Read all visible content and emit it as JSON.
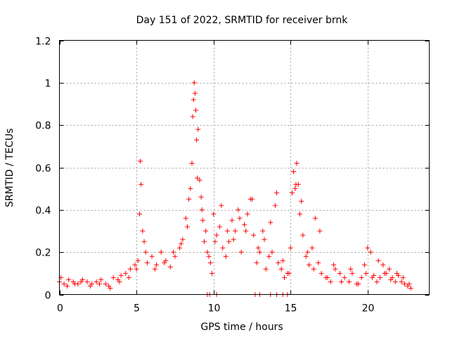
{
  "chart_data": {
    "type": "scatter",
    "title": "Day 151 of 2022, SRMTID for receiver brnk",
    "xlabel": "GPS time / hours",
    "ylabel": "SRMTID / TECUs",
    "xlim": [
      0,
      24
    ],
    "ylim": [
      0,
      1.2
    ],
    "x_ticks": [
      0,
      5,
      10,
      15,
      20
    ],
    "x_tick_labels": [
      "0",
      "5",
      "10",
      "15",
      "20"
    ],
    "y_ticks": [
      0,
      0.2,
      0.4,
      0.6,
      0.8,
      1.0,
      1.2
    ],
    "y_tick_labels": [
      "0",
      "0.2",
      "0.4",
      "0.6",
      "0.8",
      "1",
      "1.2"
    ],
    "grid": true,
    "marker": "+",
    "series": [
      {
        "name": "SRMTID",
        "color": "#ff0000",
        "x": [
          0.0,
          0.3,
          0.6,
          0.9,
          1.2,
          1.5,
          1.8,
          2.1,
          2.4,
          2.7,
          3.0,
          3.2,
          3.5,
          3.8,
          4.0,
          4.3,
          4.6,
          4.9,
          5.1,
          5.2,
          5.25,
          5.3,
          5.4,
          5.5,
          5.7,
          6.0,
          6.3,
          6.6,
          6.9,
          7.2,
          7.5,
          7.8,
          8.0,
          8.2,
          8.4,
          8.5,
          8.6,
          8.7,
          8.75,
          8.8,
          8.85,
          8.9,
          9.0,
          9.1,
          9.2,
          9.3,
          9.4,
          9.6,
          9.8,
          10.0,
          10.2,
          10.4,
          10.6,
          10.8,
          11.0,
          11.2,
          11.4,
          11.6,
          11.8,
          12.0,
          12.2,
          12.4,
          12.6,
          12.8,
          13.0,
          13.2,
          13.4,
          13.6,
          13.8,
          14.0,
          14.2,
          14.4,
          14.6,
          14.8,
          15.0,
          15.1,
          15.2,
          15.3,
          15.4,
          15.5,
          15.6,
          15.8,
          16.0,
          16.2,
          16.4,
          16.6,
          16.8,
          17.0,
          17.3,
          17.6,
          17.9,
          18.2,
          18.5,
          18.8,
          19.0,
          19.3,
          19.6,
          19.8,
          20.0,
          20.2,
          20.4,
          20.6,
          20.8,
          21.0,
          21.2,
          21.4,
          21.6,
          21.8,
          22.0,
          22.2,
          22.4,
          22.6,
          22.8,
          0.1,
          0.5,
          1.0,
          1.4,
          2.0,
          2.6,
          3.3,
          3.9,
          4.5,
          5.0,
          5.6,
          6.2,
          6.8,
          7.4,
          7.9,
          8.3,
          8.65,
          8.95,
          9.25,
          9.5,
          9.7,
          9.9,
          10.1,
          10.5,
          10.9,
          11.3,
          11.7,
          12.1,
          12.5,
          12.9,
          13.3,
          13.7,
          14.1,
          14.5,
          14.9,
          15.35,
          15.7,
          16.1,
          16.5,
          16.9,
          17.4,
          17.8,
          18.3,
          18.9,
          19.4,
          19.9,
          20.3,
          20.7,
          21.1,
          21.5,
          21.9,
          22.3,
          22.7,
          9.6,
          9.75,
          10.2,
          12.7,
          13.0,
          13.7,
          14.1,
          14.5,
          14.8
        ],
        "y": [
          0.06,
          0.05,
          0.07,
          0.06,
          0.05,
          0.07,
          0.06,
          0.05,
          0.06,
          0.07,
          0.05,
          0.04,
          0.08,
          0.07,
          0.09,
          0.1,
          0.12,
          0.14,
          0.16,
          0.38,
          0.63,
          0.52,
          0.3,
          0.25,
          0.15,
          0.18,
          0.14,
          0.2,
          0.16,
          0.13,
          0.18,
          0.22,
          0.26,
          0.36,
          0.45,
          0.5,
          0.62,
          0.92,
          1.0,
          0.95,
          0.87,
          0.73,
          0.78,
          0.54,
          0.46,
          0.35,
          0.25,
          0.2,
          0.15,
          0.38,
          0.28,
          0.32,
          0.22,
          0.18,
          0.25,
          0.35,
          0.3,
          0.4,
          0.2,
          0.33,
          0.38,
          0.45,
          0.28,
          0.15,
          0.2,
          0.3,
          0.12,
          0.18,
          0.2,
          0.42,
          0.15,
          0.12,
          0.08,
          0.1,
          0.22,
          0.48,
          0.58,
          0.5,
          0.62,
          0.52,
          0.38,
          0.28,
          0.18,
          0.14,
          0.22,
          0.36,
          0.15,
          0.1,
          0.08,
          0.06,
          0.12,
          0.1,
          0.08,
          0.06,
          0.1,
          0.05,
          0.08,
          0.14,
          0.22,
          0.2,
          0.09,
          0.06,
          0.08,
          0.14,
          0.1,
          0.12,
          0.08,
          0.06,
          0.09,
          0.06,
          0.05,
          0.04,
          0.03,
          0.08,
          0.04,
          0.05,
          0.06,
          0.04,
          0.05,
          0.03,
          0.06,
          0.08,
          0.12,
          0.2,
          0.12,
          0.15,
          0.2,
          0.24,
          0.32,
          0.84,
          0.55,
          0.4,
          0.3,
          0.18,
          0.1,
          0.25,
          0.42,
          0.3,
          0.26,
          0.36,
          0.3,
          0.45,
          0.22,
          0.26,
          0.34,
          0.48,
          0.16,
          0.1,
          0.52,
          0.44,
          0.2,
          0.12,
          0.3,
          0.08,
          0.14,
          0.06,
          0.12,
          0.05,
          0.1,
          0.08,
          0.16,
          0.1,
          0.07,
          0.1,
          0.08,
          0.05,
          0.0,
          0.0,
          0.0,
          0.0,
          0.0,
          0.0,
          0.0,
          0.0,
          0.0
        ]
      }
    ]
  }
}
